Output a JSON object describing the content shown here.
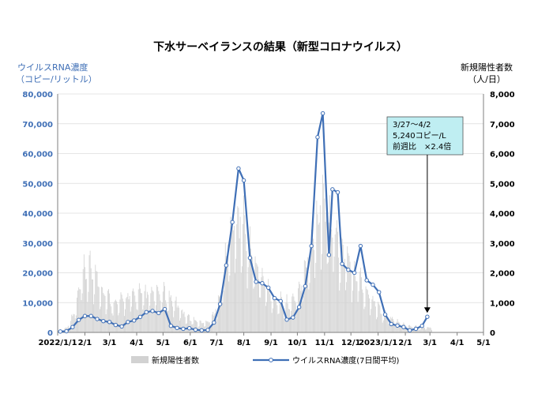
{
  "chart_data": {
    "type": "bar+line",
    "title": "下水サーベイランスの結果（新型コロナウイルス）",
    "left_axis_label_line1": "ウイルスRNA濃度",
    "left_axis_label_line2": "（コピー/リットル）",
    "right_axis_label_line1": "新規陽性者数",
    "right_axis_label_line2": "（人/日）",
    "left_ylim": [
      0,
      80000
    ],
    "right_ylim": [
      0,
      8000
    ],
    "left_ticks": [
      "0",
      "10,000",
      "20,000",
      "30,000",
      "40,000",
      "50,000",
      "60,000",
      "70,000",
      "80,000"
    ],
    "right_ticks": [
      "0",
      "1,000",
      "2,000",
      "3,000",
      "4,000",
      "5,000",
      "6,000",
      "7,000",
      "8,000"
    ],
    "x_tick_labels": [
      "2022/1/1",
      "2/1",
      "3/1",
      "4/1",
      "5/1",
      "6/1",
      "7/1",
      "8/1",
      "9/1",
      "10/1",
      "11/1",
      "12/1",
      "2023/1/1",
      "2/1",
      "3/1",
      "4/1",
      "5/1"
    ],
    "legend": {
      "bars": "新規陽性者数",
      "line": "ウイルスRNA濃度(7日間平均)"
    },
    "annotation": {
      "line1": "3/27～4/2",
      "line2": "5,240コピー/L",
      "line3": "前週比　×2.4倍"
    },
    "colors": {
      "line": "#3f6fb6",
      "bars": "#d2d2d2",
      "left_axis": "#3f6fb6",
      "annotation_fill": "#bfeef2"
    },
    "rna_series": {
      "name": "ウイルスRNA濃度(7日間平均)",
      "points": [
        [
          3,
          300
        ],
        [
          10,
          400
        ],
        [
          17,
          1800
        ],
        [
          24,
          4200
        ],
        [
          31,
          5500
        ],
        [
          38,
          5500
        ],
        [
          45,
          4500
        ],
        [
          52,
          3800
        ],
        [
          59,
          3500
        ],
        [
          66,
          2500
        ],
        [
          73,
          2000
        ],
        [
          80,
          3500
        ],
        [
          87,
          4000
        ],
        [
          94,
          5200
        ],
        [
          101,
          6800
        ],
        [
          108,
          7200
        ],
        [
          115,
          6500
        ],
        [
          122,
          7800
        ],
        [
          129,
          2200
        ],
        [
          136,
          1500
        ],
        [
          143,
          1200
        ],
        [
          150,
          1400
        ],
        [
          157,
          900
        ],
        [
          164,
          700
        ],
        [
          171,
          800
        ],
        [
          178,
          3300
        ],
        [
          185,
          9500
        ],
        [
          192,
          22500
        ],
        [
          199,
          37000
        ],
        [
          206,
          55000
        ],
        [
          212,
          51000
        ],
        [
          219,
          25000
        ],
        [
          226,
          17000
        ],
        [
          233,
          16500
        ],
        [
          240,
          15000
        ],
        [
          247,
          11500
        ],
        [
          254,
          10500
        ],
        [
          261,
          4300
        ],
        [
          268,
          5000
        ],
        [
          275,
          8500
        ],
        [
          282,
          15500
        ],
        [
          289,
          29000
        ],
        [
          296,
          65500
        ],
        [
          302,
          73500
        ],
        [
          309,
          26000
        ],
        [
          313,
          48000
        ],
        [
          319,
          47000
        ],
        [
          324,
          23000
        ],
        [
          331,
          21000
        ],
        [
          338,
          20000
        ],
        [
          345,
          29000
        ],
        [
          352,
          17500
        ],
        [
          359,
          16000
        ],
        [
          366,
          13500
        ],
        [
          373,
          6000
        ],
        [
          380,
          2800
        ],
        [
          387,
          2300
        ],
        [
          394,
          1800
        ],
        [
          401,
          700
        ],
        [
          408,
          1200
        ],
        [
          415,
          2200
        ],
        [
          421,
          5240
        ]
      ]
    },
    "cases_weekly_avg": [
      [
        0,
        20
      ],
      [
        7,
        80
      ],
      [
        14,
        250
      ],
      [
        21,
        800
      ],
      [
        28,
        1700
      ],
      [
        35,
        1900
      ],
      [
        42,
        1800
      ],
      [
        49,
        1400
      ],
      [
        56,
        1100
      ],
      [
        63,
        950
      ],
      [
        70,
        900
      ],
      [
        77,
        1050
      ],
      [
        84,
        1100
      ],
      [
        91,
        1200
      ],
      [
        98,
        1150
      ],
      [
        105,
        1150
      ],
      [
        112,
        1150
      ],
      [
        119,
        1250
      ],
      [
        126,
        1100
      ],
      [
        133,
        900
      ],
      [
        140,
        700
      ],
      [
        147,
        500
      ],
      [
        154,
        400
      ],
      [
        161,
        300
      ],
      [
        168,
        300
      ],
      [
        175,
        400
      ],
      [
        182,
        800
      ],
      [
        189,
        1800
      ],
      [
        196,
        2900
      ],
      [
        203,
        3400
      ],
      [
        210,
        3400
      ],
      [
        217,
        2800
      ],
      [
        224,
        2200
      ],
      [
        231,
        1700
      ],
      [
        238,
        1400
      ],
      [
        245,
        1100
      ],
      [
        252,
        950
      ],
      [
        259,
        850
      ],
      [
        266,
        900
      ],
      [
        273,
        1150
      ],
      [
        280,
        1700
      ],
      [
        287,
        2500
      ],
      [
        294,
        3400
      ],
      [
        301,
        4000
      ],
      [
        308,
        3600
      ],
      [
        315,
        3200
      ],
      [
        322,
        2600
      ],
      [
        329,
        2200
      ],
      [
        336,
        1900
      ],
      [
        343,
        1800
      ],
      [
        350,
        1300
      ],
      [
        357,
        1050
      ],
      [
        364,
        800
      ],
      [
        371,
        600
      ],
      [
        378,
        450
      ],
      [
        385,
        320
      ],
      [
        392,
        260
      ],
      [
        399,
        180
      ],
      [
        406,
        170
      ],
      [
        413,
        160
      ],
      [
        420,
        150
      ],
      [
        426,
        140
      ]
    ]
  }
}
